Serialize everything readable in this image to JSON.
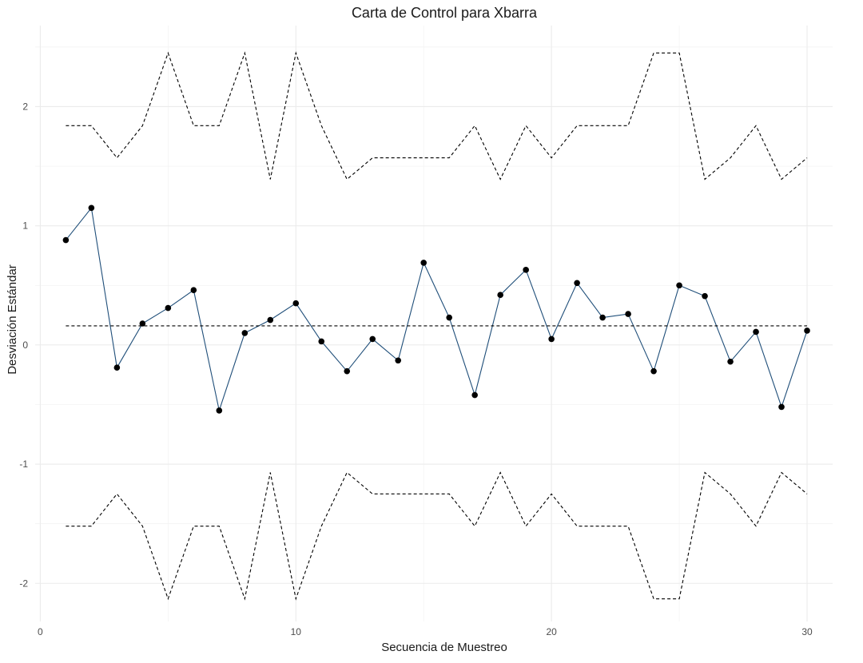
{
  "chart_data": {
    "type": "line",
    "title": "Carta de Control para Xbarra",
    "xlabel": "Secuencia de Muestreo",
    "ylabel": "Desviación Estándar",
    "xlim": [
      -0.2,
      31.0
    ],
    "ylim": [
      -2.32,
      2.68
    ],
    "x_ticks": [
      0,
      10,
      20,
      30
    ],
    "x_tick_labels": [
      "0",
      "10",
      "20",
      "30"
    ],
    "y_ticks": [
      -2,
      -1,
      0,
      1,
      2
    ],
    "y_tick_labels": [
      "-2",
      "-1",
      "0",
      "1",
      "2"
    ],
    "grid": true,
    "x": [
      1,
      2,
      3,
      4,
      5,
      6,
      7,
      8,
      9,
      10,
      11,
      12,
      13,
      14,
      15,
      16,
      17,
      18,
      19,
      20,
      21,
      22,
      23,
      24,
      25,
      26,
      27,
      28,
      29,
      30
    ],
    "series": [
      {
        "role": "sample-means",
        "color": "#1f4e79",
        "point_color": "#000000",
        "values": [
          0.88,
          1.15,
          -0.19,
          0.18,
          0.31,
          0.46,
          -0.55,
          0.1,
          0.21,
          0.35,
          0.03,
          -0.22,
          0.05,
          -0.13,
          0.69,
          0.23,
          -0.42,
          0.42,
          0.63,
          0.05,
          0.52,
          0.23,
          0.26,
          -0.22,
          0.5,
          0.41,
          -0.14,
          0.11,
          -0.52,
          0.12
        ]
      },
      {
        "role": "upper-control-limit",
        "color": "#000000",
        "dashed": true,
        "values": [
          1.84,
          1.84,
          1.57,
          1.84,
          2.45,
          1.84,
          1.84,
          2.45,
          1.39,
          2.45,
          1.84,
          1.39,
          1.57,
          1.57,
          1.57,
          1.57,
          1.84,
          1.39,
          1.84,
          1.57,
          1.84,
          1.84,
          1.84,
          2.45,
          2.45,
          1.39,
          1.57,
          1.84,
          1.39,
          1.57
        ]
      },
      {
        "role": "center-line",
        "color": "#000000",
        "dashed": true,
        "values": [
          0.16,
          0.16,
          0.16,
          0.16,
          0.16,
          0.16,
          0.16,
          0.16,
          0.16,
          0.16,
          0.16,
          0.16,
          0.16,
          0.16,
          0.16,
          0.16,
          0.16,
          0.16,
          0.16,
          0.16,
          0.16,
          0.16,
          0.16,
          0.16,
          0.16,
          0.16,
          0.16,
          0.16,
          0.16,
          0.16
        ]
      },
      {
        "role": "lower-control-limit",
        "color": "#000000",
        "dashed": true,
        "values": [
          -1.52,
          -1.52,
          -1.25,
          -1.52,
          -2.13,
          -1.52,
          -1.52,
          -2.13,
          -1.07,
          -2.13,
          -1.52,
          -1.07,
          -1.25,
          -1.25,
          -1.25,
          -1.25,
          -1.52,
          -1.07,
          -1.52,
          -1.25,
          -1.52,
          -1.52,
          -1.52,
          -2.13,
          -2.13,
          -1.07,
          -1.25,
          -1.52,
          -1.07,
          -1.25
        ]
      }
    ]
  }
}
